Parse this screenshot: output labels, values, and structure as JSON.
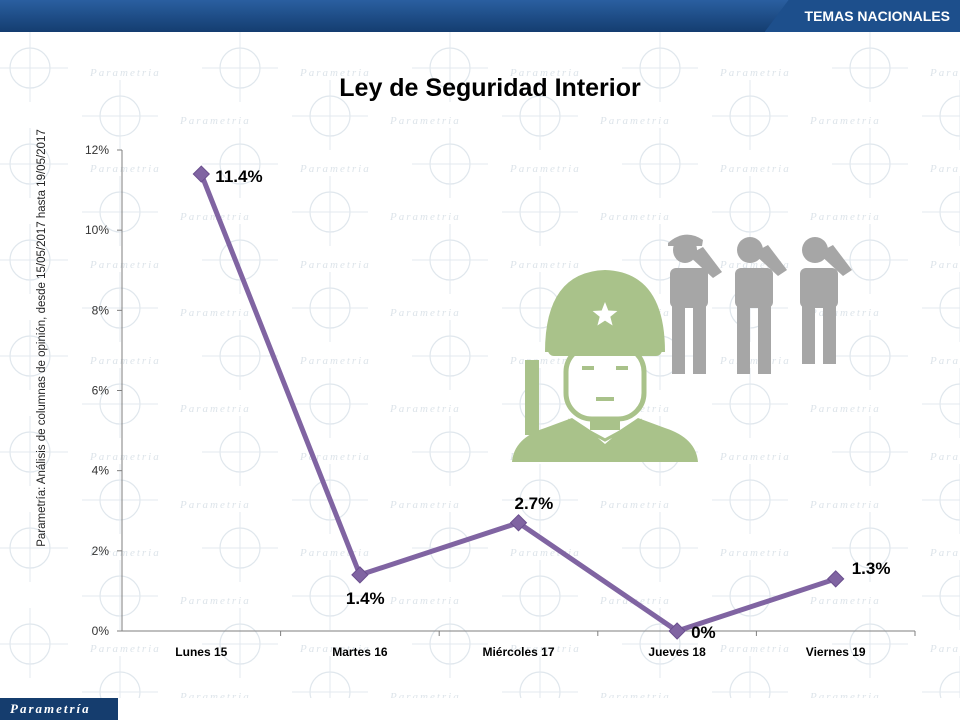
{
  "header": {
    "section": "TEMAS NACIONALES"
  },
  "watermark": {
    "word": "Parametria"
  },
  "footer": {
    "logo_text": "Parametría"
  },
  "source_note": "Parametría: Análisis de columnas de opinión, desde 15/05/2017 hasta 19/05/2017",
  "colors": {
    "line": "#8064a2",
    "header_blue": "#1d4f8c",
    "soldier": "#a9c28a",
    "figures": "#a6a6a6"
  },
  "icons": [
    "soldier-icon",
    "saluting-figure-icon"
  ],
  "chart_data": {
    "type": "line",
    "title": "Ley de Seguridad Interior",
    "categories": [
      "Lunes 15",
      "Martes 16",
      "Miércoles 17",
      "Jueves 18",
      "Viernes 19"
    ],
    "values": [
      11.4,
      1.4,
      2.7,
      0,
      1.3
    ],
    "data_labels": [
      "11.4%",
      "1.4%",
      "2.7%",
      "0%",
      "1.3%"
    ],
    "yticks": [
      "0%",
      "2%",
      "4%",
      "6%",
      "8%",
      "10%",
      "12%"
    ],
    "ylim": [
      0,
      12
    ],
    "grid": false,
    "legend": "none",
    "marker": "diamond"
  }
}
